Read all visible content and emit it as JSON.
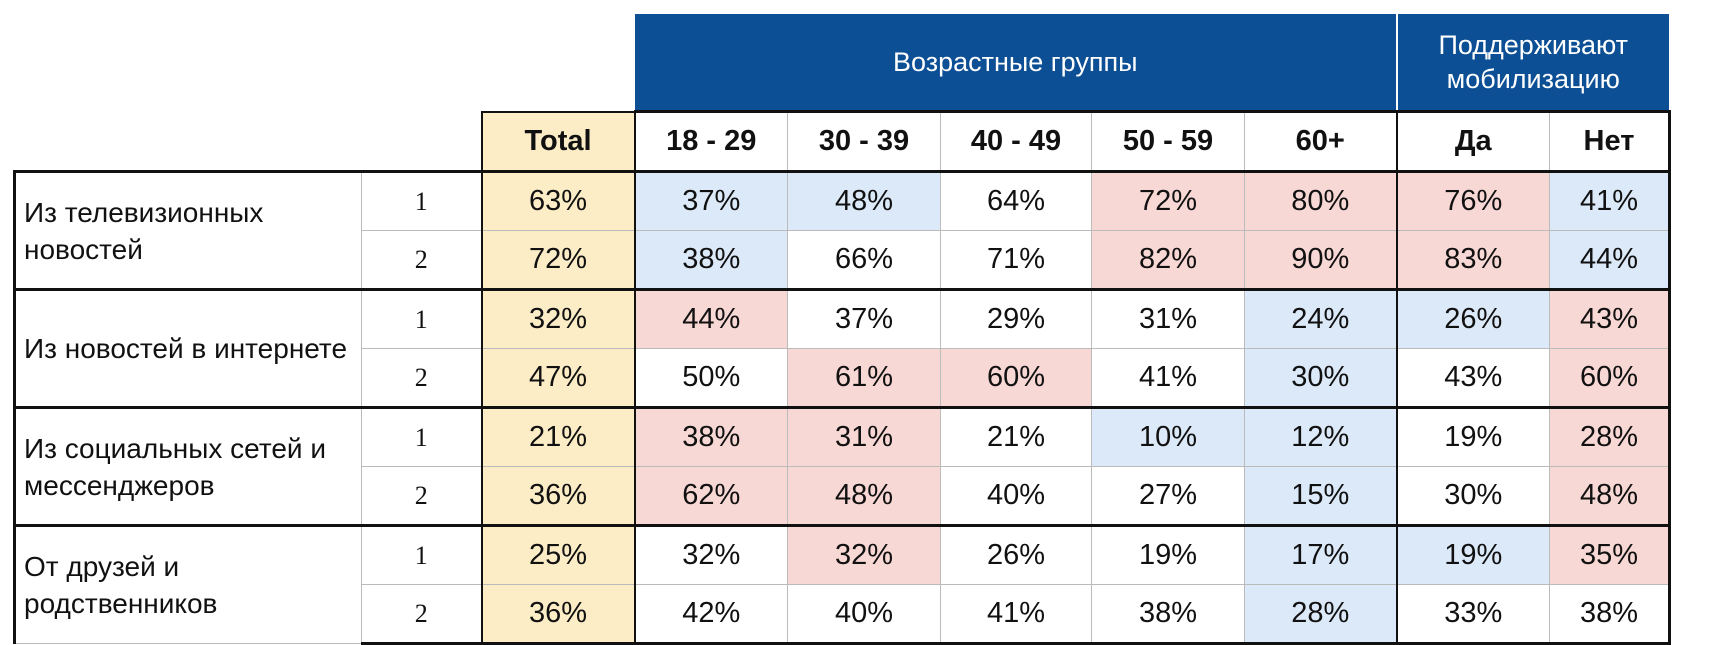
{
  "header": {
    "group_age": "Возрастные группы",
    "group_support": "Поддерживают мобилизацию",
    "total": "Total",
    "columns": [
      "18 - 29",
      "30 - 39",
      "40 - 49",
      "50 - 59",
      "60+",
      "Да",
      "Нет"
    ]
  },
  "palette": {
    "blue": "#dce9f9",
    "pink": "#f8d8d4"
  },
  "rows": [
    {
      "label": "Из телевизионных новостей",
      "waves": [
        {
          "wave": "1",
          "total": "63%",
          "cells": [
            "37%",
            "48%",
            "64%",
            "72%",
            "80%",
            "76%",
            "41%"
          ],
          "shades": [
            "blue",
            "blue",
            null,
            "pink",
            "pink",
            "pink",
            "blue"
          ]
        },
        {
          "wave": "2",
          "total": "72%",
          "cells": [
            "38%",
            "66%",
            "71%",
            "82%",
            "90%",
            "83%",
            "44%"
          ],
          "shades": [
            "blue",
            null,
            null,
            "pink",
            "pink",
            "pink",
            "blue"
          ]
        }
      ]
    },
    {
      "label": "Из новостей в интернете",
      "waves": [
        {
          "wave": "1",
          "total": "32%",
          "cells": [
            "44%",
            "37%",
            "29%",
            "31%",
            "24%",
            "26%",
            "43%"
          ],
          "shades": [
            "pink",
            null,
            null,
            null,
            "blue",
            "blue",
            "pink"
          ]
        },
        {
          "wave": "2",
          "total": "47%",
          "cells": [
            "50%",
            "61%",
            "60%",
            "41%",
            "30%",
            "43%",
            "60%"
          ],
          "shades": [
            null,
            "pink",
            "pink",
            null,
            "blue",
            null,
            "pink"
          ]
        }
      ]
    },
    {
      "label": "Из социальных сетей и мессенджеров",
      "waves": [
        {
          "wave": "1",
          "total": "21%",
          "cells": [
            "38%",
            "31%",
            "21%",
            "10%",
            "12%",
            "19%",
            "28%"
          ],
          "shades": [
            "pink",
            "pink",
            null,
            "blue",
            "blue",
            null,
            "pink"
          ]
        },
        {
          "wave": "2",
          "total": "36%",
          "cells": [
            "62%",
            "48%",
            "40%",
            "27%",
            "15%",
            "30%",
            "48%"
          ],
          "shades": [
            "pink",
            "pink",
            null,
            null,
            "blue",
            null,
            "pink"
          ]
        }
      ]
    },
    {
      "label": "От друзей и родственников",
      "waves": [
        {
          "wave": "1",
          "total": "25%",
          "cells": [
            "32%",
            "32%",
            "26%",
            "19%",
            "17%",
            "19%",
            "35%"
          ],
          "shades": [
            null,
            "pink",
            null,
            null,
            "blue",
            "blue",
            "pink"
          ]
        },
        {
          "wave": "2",
          "total": "36%",
          "cells": [
            "42%",
            "40%",
            "41%",
            "38%",
            "28%",
            "33%",
            "38%"
          ],
          "shades": [
            null,
            null,
            null,
            null,
            "blue",
            null,
            null
          ]
        }
      ]
    }
  ]
}
